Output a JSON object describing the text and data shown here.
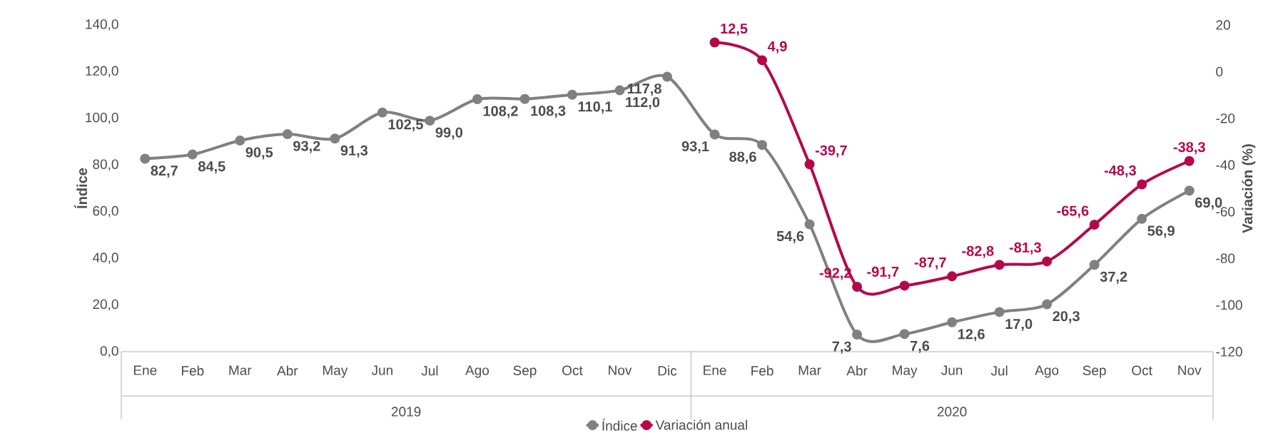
{
  "chart_data": {
    "type": "line",
    "ylabel": "Índice",
    "y2label": "Variación (%)",
    "categories": [
      "Ene",
      "Feb",
      "Mar",
      "Abr",
      "May",
      "Jun",
      "Jul",
      "Ago",
      "Sep",
      "Oct",
      "Nov",
      "Dic",
      "Ene",
      "Feb",
      "Mar",
      "Abr",
      "May",
      "Jun",
      "Jul",
      "Ago",
      "Sep",
      "Oct",
      "Nov"
    ],
    "series": [
      {
        "name": "Índice",
        "color": "#808080",
        "values": [
          82.7,
          84.5,
          90.5,
          93.2,
          91.3,
          102.5,
          99.0,
          108.2,
          108.3,
          110.1,
          112.0,
          117.8,
          93.1,
          88.6,
          54.6,
          7.3,
          7.6,
          12.6,
          17.0,
          20.3,
          37.2,
          56.9,
          69.0
        ],
        "value_labels": [
          "82,7",
          "84,5",
          "90,5",
          "93,2",
          "91,3",
          "102,5",
          "99,0",
          "108,2",
          "108,3",
          "110,1",
          "112,0",
          "117,8",
          "93,1",
          "88,6",
          "54,6",
          "7,3",
          "7,6",
          "12,6",
          "17,0",
          "20,3",
          "37,2",
          "56,9",
          "69,0"
        ]
      },
      {
        "name": "Variación anual",
        "color": "#b5084c",
        "axis": "y2",
        "values": [
          null,
          null,
          null,
          null,
          null,
          null,
          null,
          null,
          null,
          null,
          null,
          null,
          12.5,
          4.9,
          -39.7,
          -92.2,
          -91.7,
          -87.7,
          -82.8,
          -81.3,
          -65.6,
          -48.3,
          -38.3
        ],
        "value_labels": [
          null,
          null,
          null,
          null,
          null,
          null,
          null,
          null,
          null,
          null,
          null,
          null,
          "12,5",
          "4,9",
          "-39,7",
          "-92,2",
          "-91,7",
          "-87,7",
          "-82,8",
          "-81,3",
          "-65,6",
          "-48,3",
          "-38,3"
        ]
      }
    ],
    "ylim": [
      0,
      140
    ],
    "yticks": [
      {
        "value": 0,
        "label": "0,0"
      },
      {
        "value": 20,
        "label": "20,0"
      },
      {
        "value": 40,
        "label": "40,0"
      },
      {
        "value": 60,
        "label": "60,0"
      },
      {
        "value": 80,
        "label": "80,0"
      },
      {
        "value": 100,
        "label": "100,0"
      },
      {
        "value": 120,
        "label": "120,0"
      },
      {
        "value": 140,
        "label": "140,0"
      }
    ],
    "y2lim": [
      -120,
      20
    ],
    "y2ticks": [
      -120,
      -100,
      -80,
      -60,
      -40,
      -20,
      0,
      20
    ],
    "annotations": [
      "2019",
      "2020"
    ],
    "legend": "bottom",
    "marker": "circle",
    "line_style": "solid",
    "grid": false
  }
}
